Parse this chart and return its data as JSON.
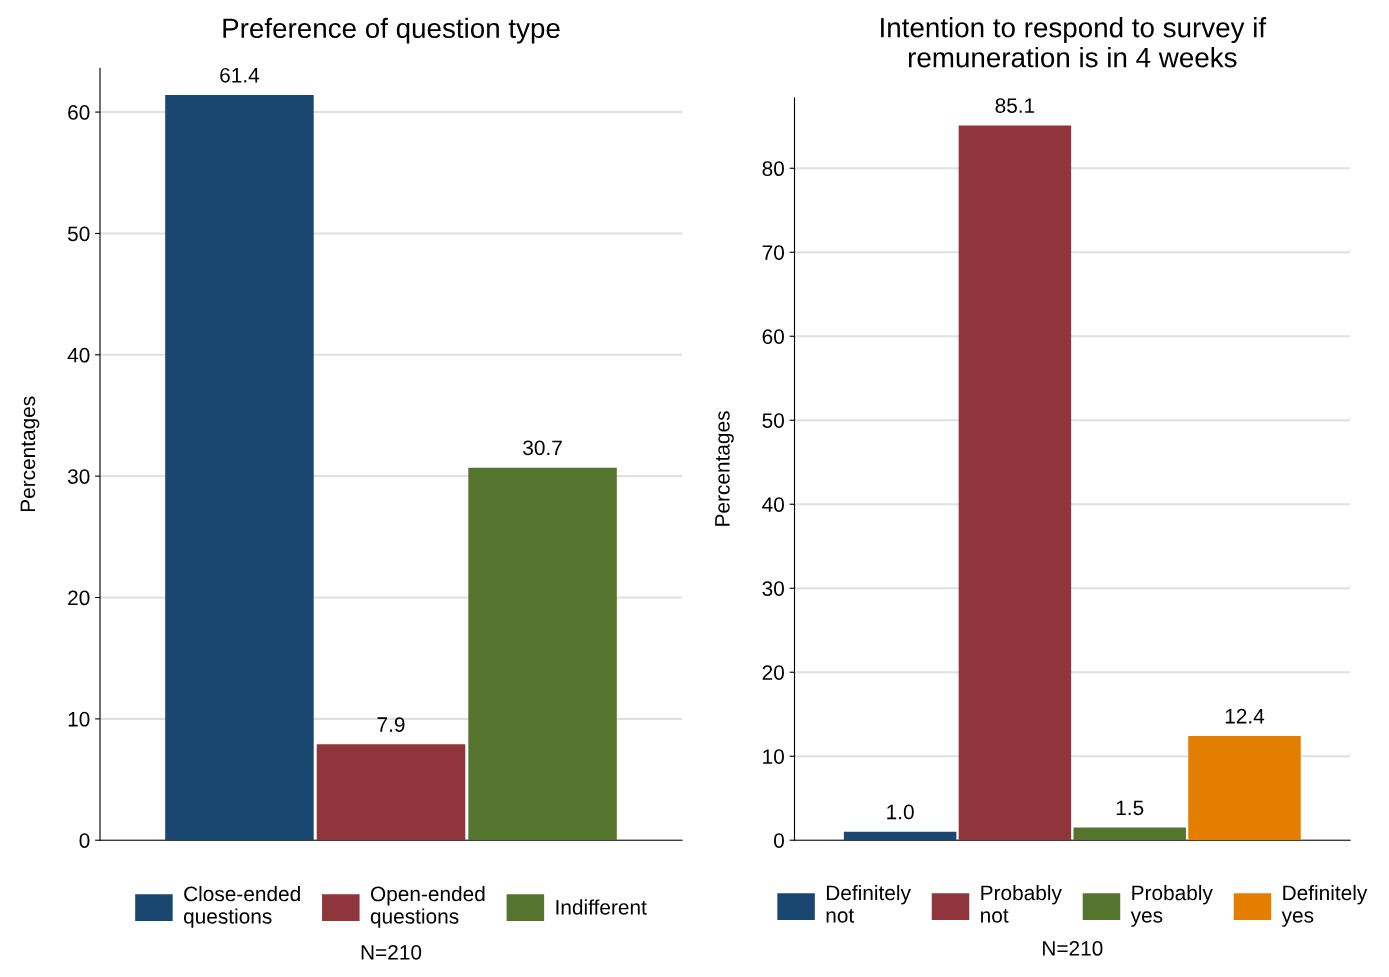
{
  "chart_data": [
    {
      "type": "bar",
      "title": "Preference of question type",
      "ylabel": "Percentages",
      "categories": [
        null,
        null,
        null
      ],
      "series": [
        {
          "name": "Close-ended\nquestions",
          "color": "#1a476f",
          "values": [
            61.4,
            null,
            null
          ],
          "value_labels": [
            "61.4",
            null,
            null
          ]
        },
        {
          "name": "Open-ended\nquestions",
          "color": "#90353b",
          "values": [
            null,
            7.9,
            null
          ],
          "value_labels": [
            null,
            "7.9",
            null
          ]
        },
        {
          "name": "Indifferent",
          "color": "#55752f",
          "values": [
            null,
            null,
            30.7
          ],
          "value_labels": [
            null,
            null,
            "30.7"
          ]
        }
      ],
      "ylim": [
        0,
        63.6
      ],
      "yticks": [
        0,
        10,
        20,
        30,
        40,
        50,
        60
      ],
      "grid": "y",
      "legend": "bottom",
      "annotations": [
        "N=210"
      ]
    },
    {
      "type": "bar",
      "title": "Intention to respond to survey if\nremuneration is in 4 weeks",
      "ylabel": "Percentages",
      "categories": [
        null,
        null,
        null,
        null
      ],
      "series": [
        {
          "name": "Definitely\nnot",
          "color": "#1a476f",
          "values": [
            1.0,
            null,
            null,
            null
          ],
          "value_labels": [
            "1.0",
            null,
            null,
            null
          ]
        },
        {
          "name": "Probably\nnot",
          "color": "#90353b",
          "values": [
            null,
            85.1,
            null,
            null
          ],
          "value_labels": [
            null,
            "85.1",
            null,
            null
          ]
        },
        {
          "name": "Probably\nyes",
          "color": "#55752f",
          "values": [
            null,
            null,
            1.5,
            null
          ],
          "value_labels": [
            null,
            null,
            "1.5",
            null
          ]
        },
        {
          "name": "Definitely\nyes",
          "color": "#e37e00",
          "values": [
            null,
            null,
            null,
            12.4
          ],
          "value_labels": [
            null,
            null,
            null,
            "12.4"
          ]
        }
      ],
      "ylim": [
        0,
        88.4
      ],
      "yticks": [
        0,
        10,
        20,
        30,
        40,
        50,
        60,
        70,
        80
      ],
      "grid": "y",
      "legend": "bottom",
      "annotations": [
        "N=210"
      ]
    }
  ]
}
